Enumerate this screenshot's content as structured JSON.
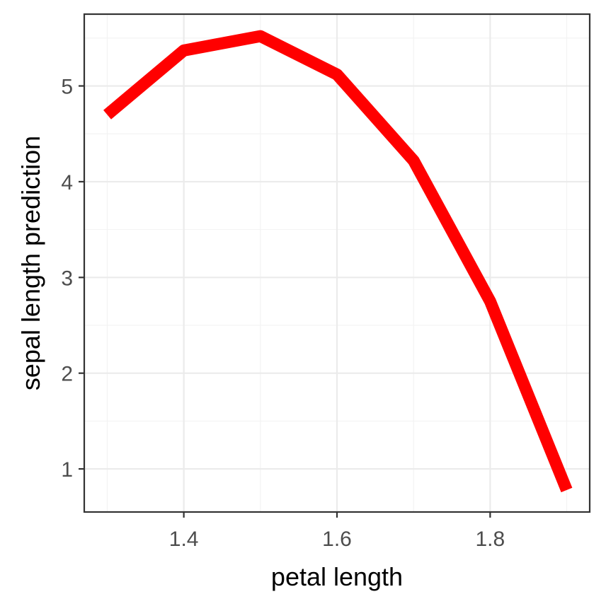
{
  "chart_data": {
    "type": "line",
    "title": "",
    "xlabel": "petal length",
    "ylabel": "sepal length prediction",
    "xlim": [
      1.27,
      1.93
    ],
    "ylim": [
      0.55,
      5.75
    ],
    "x_ticks": [
      1.4,
      1.6,
      1.8
    ],
    "x_tick_labels": [
      "1.4",
      "1.6",
      "1.8"
    ],
    "x_minor_ticks": [
      1.3,
      1.5,
      1.7,
      1.9
    ],
    "y_ticks": [
      1,
      2,
      3,
      4,
      5
    ],
    "y_tick_labels": [
      "1",
      "2",
      "3",
      "4",
      "5"
    ],
    "y_minor_ticks": [
      1.5,
      2.5,
      3.5,
      4.5,
      5.5
    ],
    "grid": true,
    "legend": "none",
    "series": [
      {
        "color": "#ff0000",
        "x": [
          1.3,
          1.4,
          1.5,
          1.6,
          1.7,
          1.8,
          1.9
        ],
        "y": [
          4.7,
          5.37,
          5.52,
          5.12,
          4.22,
          2.75,
          0.78
        ]
      }
    ]
  }
}
